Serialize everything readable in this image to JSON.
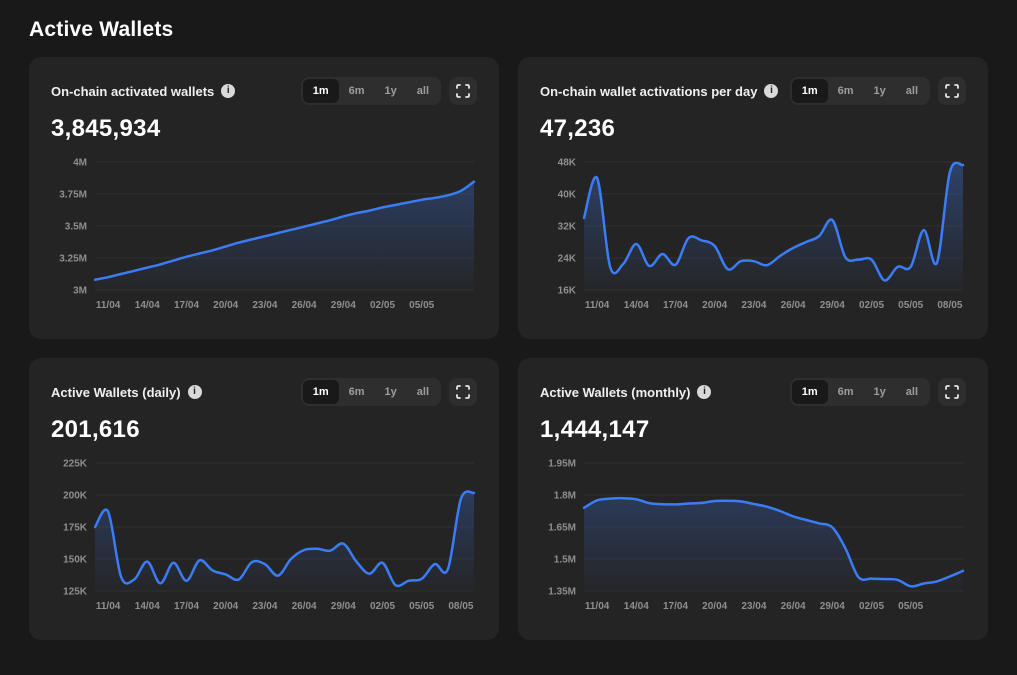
{
  "page": {
    "title": "Active Wallets"
  },
  "range_control": {
    "options": [
      "1m",
      "6m",
      "1y",
      "all"
    ],
    "selected": "1m"
  },
  "icons": {
    "info_glyph": "i",
    "fullscreen": "corner-brackets"
  },
  "colors": {
    "page_bg": "#191919",
    "card_bg": "#242424",
    "accent_line": "#3b7cf7",
    "fill_top": "rgba(61,114,220,0.38)",
    "fill_bottom": "rgba(61,114,220,0.02)",
    "grid": "#2f2f2f",
    "axis_label": "#8f8f8f"
  },
  "chart_data": [
    {
      "type": "area",
      "title": "On-chain activated wallets",
      "current_value": "3,845,934",
      "ylim": [
        3000000,
        4000000
      ],
      "yticks": [
        {
          "label": "4M",
          "value": 4000000
        },
        {
          "label": "3.75M",
          "value": 3750000
        },
        {
          "label": "3.5M",
          "value": 3500000
        },
        {
          "label": "3.25M",
          "value": 3250000
        },
        {
          "label": "3M",
          "value": 3000000
        }
      ],
      "xticks": [
        {
          "label": "11/04",
          "index": 1
        },
        {
          "label": "14/04",
          "index": 4
        },
        {
          "label": "17/04",
          "index": 7
        },
        {
          "label": "20/04",
          "index": 10
        },
        {
          "label": "23/04",
          "index": 13
        },
        {
          "label": "26/04",
          "index": 16
        },
        {
          "label": "29/04",
          "index": 19
        },
        {
          "label": "02/05",
          "index": 22
        },
        {
          "label": "05/05",
          "index": 25
        }
      ],
      "values": [
        3080000,
        3100000,
        3125000,
        3150000,
        3175000,
        3200000,
        3230000,
        3260000,
        3285000,
        3310000,
        3340000,
        3370000,
        3395000,
        3420000,
        3445000,
        3470000,
        3495000,
        3520000,
        3545000,
        3575000,
        3600000,
        3620000,
        3645000,
        3665000,
        3685000,
        3705000,
        3720000,
        3740000,
        3775000,
        3845934
      ]
    },
    {
      "type": "area",
      "title": "On-chain wallet activations per day",
      "current_value": "47,236",
      "ylim": [
        16000,
        48000
      ],
      "yticks": [
        {
          "label": "48K",
          "value": 48000
        },
        {
          "label": "40K",
          "value": 40000
        },
        {
          "label": "32K",
          "value": 32000
        },
        {
          "label": "24K",
          "value": 24000
        },
        {
          "label": "16K",
          "value": 16000
        }
      ],
      "xticks": [
        {
          "label": "11/04",
          "index": 1
        },
        {
          "label": "14/04",
          "index": 4
        },
        {
          "label": "17/04",
          "index": 7
        },
        {
          "label": "20/04",
          "index": 10
        },
        {
          "label": "23/04",
          "index": 13
        },
        {
          "label": "26/04",
          "index": 16
        },
        {
          "label": "29/04",
          "index": 19
        },
        {
          "label": "02/05",
          "index": 22
        },
        {
          "label": "05/05",
          "index": 25
        },
        {
          "label": "08/05",
          "index": 28
        }
      ],
      "values": [
        34000,
        44000,
        21800,
        22500,
        27500,
        22000,
        25000,
        22300,
        29000,
        28400,
        27000,
        21200,
        23200,
        23200,
        22200,
        24500,
        26500,
        28000,
        29500,
        33500,
        24200,
        23600,
        23600,
        18400,
        21800,
        21800,
        31000,
        22800,
        45500,
        47236
      ]
    },
    {
      "type": "area",
      "title": "Active Wallets (daily)",
      "current_value": "201,616",
      "ylim": [
        125000,
        225000
      ],
      "yticks": [
        {
          "label": "225K",
          "value": 225000
        },
        {
          "label": "200K",
          "value": 200000
        },
        {
          "label": "175K",
          "value": 175000
        },
        {
          "label": "150K",
          "value": 150000
        },
        {
          "label": "125K",
          "value": 125000
        }
      ],
      "xticks": [
        {
          "label": "11/04",
          "index": 1
        },
        {
          "label": "14/04",
          "index": 4
        },
        {
          "label": "17/04",
          "index": 7
        },
        {
          "label": "20/04",
          "index": 10
        },
        {
          "label": "23/04",
          "index": 13
        },
        {
          "label": "26/04",
          "index": 16
        },
        {
          "label": "29/04",
          "index": 19
        },
        {
          "label": "02/05",
          "index": 22
        },
        {
          "label": "05/05",
          "index": 25
        },
        {
          "label": "08/05",
          "index": 28
        }
      ],
      "values": [
        175000,
        187000,
        136000,
        134000,
        148000,
        131000,
        147000,
        133000,
        149000,
        141000,
        138000,
        134000,
        147500,
        146000,
        137000,
        150000,
        157000,
        158000,
        156500,
        162000,
        148000,
        138500,
        147000,
        129500,
        133000,
        134500,
        146000,
        142000,
        197000,
        201616
      ]
    },
    {
      "type": "area",
      "title": "Active Wallets (monthly)",
      "current_value": "1,444,147",
      "ylim": [
        1350000,
        1950000
      ],
      "yticks": [
        {
          "label": "1.95M",
          "value": 1950000
        },
        {
          "label": "1.8M",
          "value": 1800000
        },
        {
          "label": "1.65M",
          "value": 1650000
        },
        {
          "label": "1.5M",
          "value": 1500000
        },
        {
          "label": "1.35M",
          "value": 1350000
        }
      ],
      "xticks": [
        {
          "label": "11/04",
          "index": 1
        },
        {
          "label": "14/04",
          "index": 4
        },
        {
          "label": "17/04",
          "index": 7
        },
        {
          "label": "20/04",
          "index": 10
        },
        {
          "label": "23/04",
          "index": 13
        },
        {
          "label": "26/04",
          "index": 16
        },
        {
          "label": "29/04",
          "index": 19
        },
        {
          "label": "02/05",
          "index": 22
        },
        {
          "label": "05/05",
          "index": 25
        }
      ],
      "values": [
        1740000,
        1775000,
        1783000,
        1785000,
        1780000,
        1762000,
        1757000,
        1756000,
        1760000,
        1763000,
        1772000,
        1773000,
        1770000,
        1758000,
        1745000,
        1725000,
        1700000,
        1683000,
        1667000,
        1648000,
        1550000,
        1415000,
        1408000,
        1406000,
        1402000,
        1372000,
        1385000,
        1395000,
        1418000,
        1444147
      ]
    }
  ]
}
